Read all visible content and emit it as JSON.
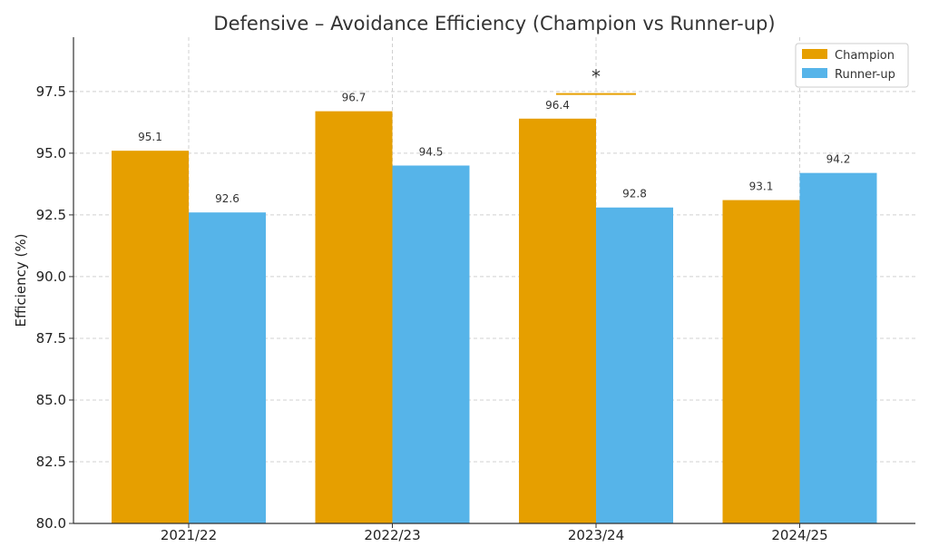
{
  "chart_data": {
    "type": "bar",
    "title": "Defensive – Avoidance Efficiency (Champion vs Runner-up)",
    "xlabel": "",
    "ylabel": "Efficiency (%)",
    "categories": [
      "2021/22",
      "2022/23",
      "2023/24",
      "2024/25"
    ],
    "series": [
      {
        "name": "Champion",
        "color": "#E69F00",
        "values": [
          95.1,
          96.7,
          96.4,
          93.1
        ],
        "labels": [
          "95.1",
          "96.7",
          "96.4",
          "93.1"
        ]
      },
      {
        "name": "Runner-up",
        "color": "#56B4E9",
        "values": [
          92.6,
          94.5,
          92.8,
          94.2
        ],
        "labels": [
          "92.6",
          "94.5",
          "92.8",
          "94.2"
        ]
      }
    ],
    "ylim": [
      80.0,
      99.7
    ],
    "yticks": [
      "80.0",
      "82.5",
      "85.0",
      "87.5",
      "90.0",
      "92.5",
      "95.0",
      "97.5"
    ],
    "grid": true,
    "legend_position": "top-right",
    "annotations": [
      {
        "category": "2023/24",
        "text": "*",
        "line_value": 97.4,
        "color": "#E69F00"
      }
    ]
  }
}
